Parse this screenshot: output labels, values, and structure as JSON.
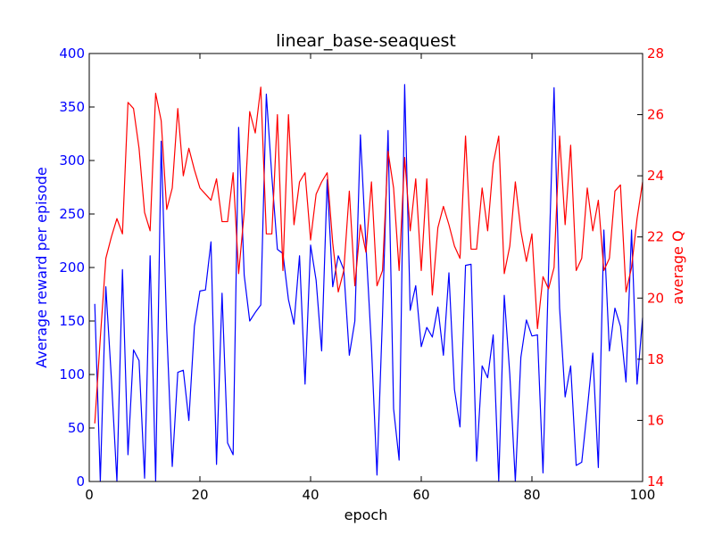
{
  "chart_data": {
    "type": "line",
    "title": "linear_base-seaquest",
    "xlabel": "epoch",
    "ylabel": "Average reward per episode",
    "ylabel_right": "average Q",
    "xlim": [
      0,
      100
    ],
    "ylim": [
      0,
      400
    ],
    "ylim_right": [
      14,
      28
    ],
    "xticks": [
      0,
      20,
      40,
      60,
      80,
      100
    ],
    "yticks": [
      0,
      50,
      100,
      150,
      200,
      250,
      300,
      350,
      400
    ],
    "yticks_right": [
      14,
      16,
      18,
      20,
      22,
      24,
      26,
      28
    ],
    "grid": false,
    "series": [
      {
        "axis": "left",
        "color": "#0000ff",
        "x": [
          1,
          2,
          3,
          4,
          5,
          6,
          7,
          8,
          9,
          10,
          11,
          12,
          13,
          14,
          15,
          16,
          17,
          18,
          19,
          20,
          21,
          22,
          23,
          24,
          25,
          26,
          27,
          28,
          29,
          30,
          31,
          32,
          33,
          34,
          35,
          36,
          37,
          38,
          39,
          40,
          41,
          42,
          43,
          44,
          45,
          46,
          47,
          48,
          49,
          50,
          51,
          52,
          53,
          54,
          55,
          56,
          57,
          58,
          59,
          60,
          61,
          62,
          63,
          64,
          65,
          66,
          67,
          68,
          69,
          70,
          71,
          72,
          73,
          74,
          75,
          76,
          77,
          78,
          79,
          80,
          81,
          82,
          83,
          84,
          85,
          86,
          87,
          88,
          89,
          90,
          91,
          92,
          93,
          94,
          95,
          96,
          97,
          98,
          99,
          100
        ],
        "values": [
          166,
          0,
          182,
          96,
          0,
          198,
          25,
          123,
          113,
          3,
          211,
          0,
          318,
          143,
          14,
          102,
          104,
          57,
          145,
          178,
          179,
          224,
          16,
          176,
          36,
          25,
          331,
          193,
          150,
          158,
          165,
          362,
          285,
          217,
          213,
          170,
          147,
          211,
          91,
          221,
          188,
          122,
          282,
          182,
          211,
          198,
          118,
          150,
          324,
          221,
          126,
          6,
          155,
          328,
          68,
          20,
          371,
          160,
          183,
          126,
          144,
          135,
          163,
          118,
          195,
          86,
          51,
          202,
          203,
          19,
          108,
          97,
          137,
          0,
          174,
          100,
          0,
          116,
          151,
          136,
          137,
          8,
          196,
          368,
          162,
          79,
          108,
          15,
          18,
          67,
          120,
          13,
          235,
          122,
          162,
          145,
          93,
          235,
          91,
          153
        ]
      },
      {
        "axis": "right",
        "color": "#ff0000",
        "x": [
          1,
          2,
          3,
          4,
          5,
          6,
          7,
          8,
          9,
          10,
          11,
          12,
          13,
          14,
          15,
          16,
          17,
          18,
          19,
          20,
          21,
          22,
          23,
          24,
          25,
          26,
          27,
          28,
          29,
          30,
          31,
          32,
          33,
          34,
          35,
          36,
          37,
          38,
          39,
          40,
          41,
          42,
          43,
          44,
          45,
          46,
          47,
          48,
          49,
          50,
          51,
          52,
          53,
          54,
          55,
          56,
          57,
          58,
          59,
          60,
          61,
          62,
          63,
          64,
          65,
          66,
          67,
          68,
          69,
          70,
          71,
          72,
          73,
          74,
          75,
          76,
          77,
          78,
          79,
          80,
          81,
          82,
          83,
          84,
          85,
          86,
          87,
          88,
          89,
          90,
          91,
          92,
          93,
          94,
          95,
          96,
          97,
          98,
          99,
          100
        ],
        "values": [
          15.9,
          18.7,
          21.3,
          22.0,
          22.6,
          22.1,
          26.4,
          26.2,
          24.9,
          22.8,
          22.2,
          26.7,
          25.8,
          22.9,
          23.6,
          26.2,
          24.0,
          24.9,
          24.2,
          23.6,
          23.4,
          23.2,
          23.9,
          22.5,
          22.5,
          24.1,
          20.8,
          22.8,
          26.1,
          25.4,
          26.9,
          22.1,
          22.1,
          26.0,
          20.9,
          26.0,
          22.4,
          23.8,
          24.1,
          21.9,
          23.4,
          23.8,
          24.1,
          21.8,
          20.2,
          20.9,
          23.5,
          20.4,
          22.4,
          21.5,
          23.8,
          20.4,
          20.9,
          24.8,
          23.6,
          20.9,
          24.6,
          22.2,
          23.9,
          20.9,
          23.9,
          20.1,
          22.3,
          23.0,
          22.4,
          21.7,
          21.3,
          25.3,
          21.6,
          21.6,
          23.6,
          22.2,
          24.4,
          25.3,
          20.8,
          21.7,
          23.8,
          22.2,
          21.2,
          22.1,
          19.0,
          20.7,
          20.3,
          21.0,
          25.3,
          22.4,
          25.0,
          20.9,
          21.3,
          23.6,
          22.2,
          23.2,
          20.9,
          21.3,
          23.5,
          23.7,
          20.2,
          21.0,
          22.6,
          23.8
        ]
      }
    ]
  }
}
